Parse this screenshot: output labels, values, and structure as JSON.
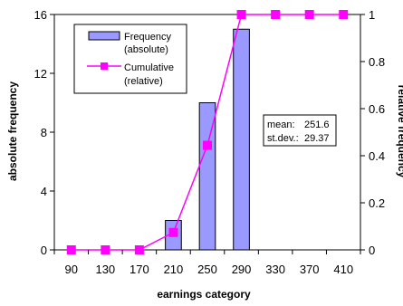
{
  "chart_data": {
    "type": "bar",
    "categories": [
      "90",
      "130",
      "170",
      "210",
      "250",
      "290",
      "330",
      "370",
      "410"
    ],
    "series": [
      {
        "name": "Frequency (absolute)",
        "type": "bar",
        "axis": "left",
        "values": [
          0,
          0,
          0,
          2,
          10,
          15,
          0,
          0,
          0
        ]
      },
      {
        "name": "Cumulative (relative)",
        "type": "line",
        "axis": "right",
        "values": [
          0,
          0,
          0,
          0.074,
          0.444,
          1,
          1,
          1,
          1
        ]
      }
    ],
    "xlabel": "earnings category",
    "ylabel": "absolute frequency",
    "y2label": "relative frequency",
    "ylim": [
      0,
      16
    ],
    "y2lim": [
      0,
      1
    ],
    "yticks": [
      "0",
      "4",
      "8",
      "12",
      "16"
    ],
    "y2ticks": [
      "0",
      "0.2",
      "0.4",
      "0.6",
      "0.8",
      "1"
    ],
    "legend": {
      "position": "top-left",
      "bar_label_lines": [
        "Frequency",
        "(absolute)"
      ],
      "line_label_lines": [
        "Cumulative",
        "(relative)"
      ]
    },
    "stats": {
      "mean_label": "mean:",
      "mean_value": "251.6",
      "sd_label": "st.dev.:",
      "sd_value": "29.37"
    },
    "colors": {
      "bar_fill": "#9999ff",
      "bar_stroke": "#000000",
      "line": "#ff00ff"
    }
  }
}
